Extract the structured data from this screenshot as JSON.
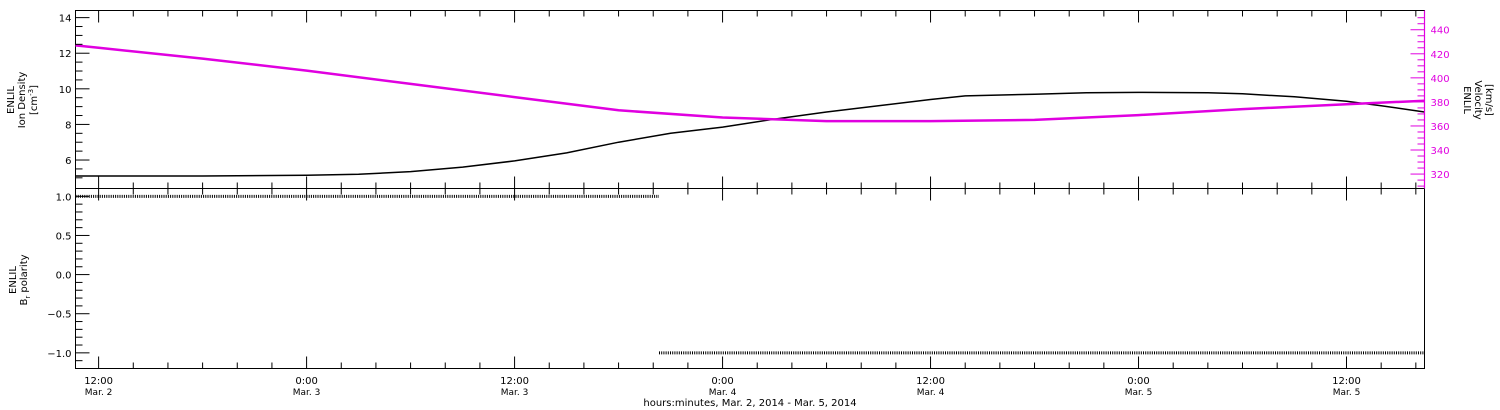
{
  "xlabel": "hours:minutes, Mar. 2, 2014 - Mar. 5, 2014",
  "x_ticks": [
    {
      "time": "2014-03-02T12:00",
      "line1": "12:00",
      "line2": "Mar. 2"
    },
    {
      "time": "2014-03-03T00:00",
      "line1": "0:00",
      "line2": "Mar. 3"
    },
    {
      "time": "2014-03-03T12:00",
      "line1": "12:00",
      "line2": "Mar. 3"
    },
    {
      "time": "2014-03-04T00:00",
      "line1": "0:00",
      "line2": "Mar. 4"
    },
    {
      "time": "2014-03-04T12:00",
      "line1": "12:00",
      "line2": "Mar. 4"
    },
    {
      "time": "2014-03-05T00:00",
      "line1": "0:00",
      "line2": "Mar. 5"
    },
    {
      "time": "2014-03-05T12:00",
      "line1": "12:00",
      "line2": "Mar. 5"
    }
  ],
  "colors": {
    "density": "#000000",
    "velocity": "#e000e0",
    "polarity": "#000000",
    "axis": "#000000"
  },
  "chart_data": [
    {
      "type": "line",
      "panel": "top",
      "xlim": [
        "2014-03-02T10:40",
        "2014-03-05T16:30"
      ],
      "ylabel_left": {
        "line1": "ENLIL",
        "line2": "Ion Density",
        "line3": "[cm",
        "sup": "-3",
        "tail": "]"
      },
      "ylim_left": [
        4.4,
        14.4
      ],
      "yticks_left": [
        6,
        8,
        10,
        12,
        14
      ],
      "ylabel_right": {
        "line1": "ENLIL",
        "line2": "Velocity",
        "line3": "[km/s]"
      },
      "ylim_right": [
        308,
        456
      ],
      "yticks_right": [
        320,
        340,
        360,
        380,
        400,
        420,
        440
      ],
      "series": [
        {
          "axis": "left",
          "color": "#000000",
          "points": [
            [
              "2014-03-02T10:40",
              5.1
            ],
            [
              "2014-03-02T12:00",
              5.1
            ],
            [
              "2014-03-02T18:00",
              5.1
            ],
            [
              "2014-03-03T00:00",
              5.15
            ],
            [
              "2014-03-03T03:00",
              5.2
            ],
            [
              "2014-03-03T06:00",
              5.35
            ],
            [
              "2014-03-03T09:00",
              5.6
            ],
            [
              "2014-03-03T12:00",
              5.95
            ],
            [
              "2014-03-03T15:00",
              6.4
            ],
            [
              "2014-03-03T18:00",
              7.0
            ],
            [
              "2014-03-03T21:00",
              7.5
            ],
            [
              "2014-03-04T00:00",
              7.85
            ],
            [
              "2014-03-04T03:00",
              8.3
            ],
            [
              "2014-03-04T06:00",
              8.7
            ],
            [
              "2014-03-04T09:00",
              9.05
            ],
            [
              "2014-03-04T12:00",
              9.4
            ],
            [
              "2014-03-04T14:00",
              9.6
            ],
            [
              "2014-03-04T18:00",
              9.7
            ],
            [
              "2014-03-04T21:00",
              9.78
            ],
            [
              "2014-03-05T00:00",
              9.8
            ],
            [
              "2014-03-05T04:00",
              9.78
            ],
            [
              "2014-03-05T06:00",
              9.72
            ],
            [
              "2014-03-05T09:00",
              9.55
            ],
            [
              "2014-03-05T12:00",
              9.3
            ],
            [
              "2014-03-05T14:00",
              9.05
            ],
            [
              "2014-03-05T16:30",
              8.7
            ]
          ]
        },
        {
          "axis": "right",
          "color": "#e000e0",
          "points": [
            [
              "2014-03-02T10:40",
              427
            ],
            [
              "2014-03-02T12:00",
              425
            ],
            [
              "2014-03-02T18:00",
              416
            ],
            [
              "2014-03-03T00:00",
              406
            ],
            [
              "2014-03-03T06:00",
              395
            ],
            [
              "2014-03-03T12:00",
              384
            ],
            [
              "2014-03-03T18:00",
              373
            ],
            [
              "2014-03-04T00:00",
              367
            ],
            [
              "2014-03-04T06:00",
              364
            ],
            [
              "2014-03-04T12:00",
              364
            ],
            [
              "2014-03-04T18:00",
              365
            ],
            [
              "2014-03-05T00:00",
              369
            ],
            [
              "2014-03-05T06:00",
              374
            ],
            [
              "2014-03-05T12:00",
              378
            ],
            [
              "2014-03-05T16:30",
              381
            ]
          ]
        }
      ]
    },
    {
      "type": "scatter",
      "panel": "bottom",
      "xlim": [
        "2014-03-02T10:40",
        "2014-03-05T16:30"
      ],
      "ylabel": {
        "line1": "ENLIL",
        "line2": "B",
        "sub": "r",
        "tail": " polarity"
      },
      "ylim": [
        -1.2,
        1.1
      ],
      "yticks": [
        -1.0,
        -0.5,
        0.0,
        0.5,
        1.0
      ],
      "ytick_labels": [
        "−1.0",
        "−0.5",
        "0.0",
        "0.5",
        "1.0"
      ],
      "series": [
        {
          "value": 1.0,
          "start": "2014-03-02T10:40",
          "end": "2014-03-03T20:20"
        },
        {
          "value": -1.0,
          "start": "2014-03-03T20:20",
          "end": "2014-03-05T16:30"
        }
      ]
    }
  ]
}
